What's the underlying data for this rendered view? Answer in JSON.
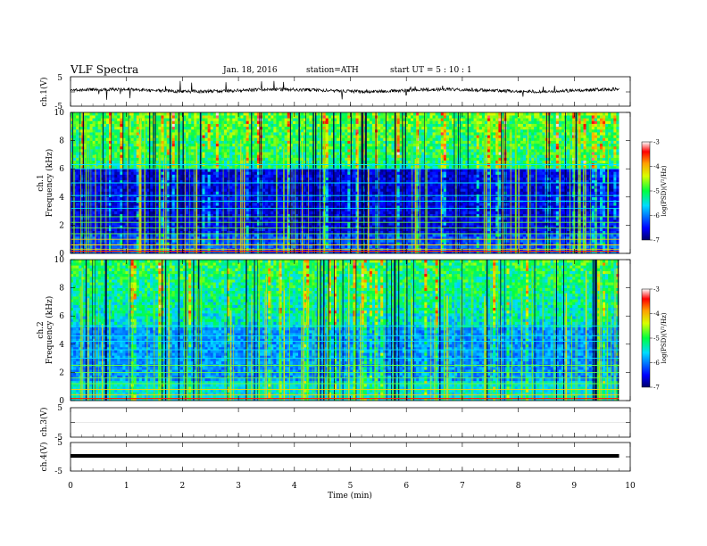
{
  "header": {
    "title": "VLF  Spectra",
    "date": "Jan. 18, 2016",
    "station": "station=ATH",
    "start": "start  UT  =   5  : 10 : 1"
  },
  "chart_data": [
    {
      "type": "line",
      "panel": "ch1-waveform",
      "ylabel": "ch.1(V)",
      "ylim": [
        -5,
        5
      ],
      "yticks": [
        "5",
        "-5"
      ],
      "x_range_min": [
        0,
        9.8
      ],
      "series": [
        {
          "values": "noisy trace centered slightly above 0 V with frequent sferic spikes"
        }
      ]
    },
    {
      "type": "heatmap",
      "panel": "ch1-spectrogram",
      "ylabel": "ch.1\nFrequency  (kHz)",
      "ylabel_lines": [
        "ch.1",
        "Frequency  (kHz)"
      ],
      "ylim": [
        0,
        10
      ],
      "yticks": [
        "0",
        "2",
        "4",
        "6",
        "8",
        "10"
      ],
      "x_range_min": [
        0,
        9.8
      ],
      "colorbar": {
        "label": "log(PSD)(V²/Hz)",
        "ticks": [
          "-3",
          "-4",
          "-5",
          "-6",
          "-7"
        ],
        "range": [
          -7,
          -3
        ]
      },
      "features": {
        "band_edge_khz": 6,
        "high_band_log_psd": -5,
        "low_band_log_psd": -6.6,
        "transmitter_lines_khz": [
          0.3,
          0.6,
          1.0,
          1.4,
          1.8,
          2.2,
          2.6,
          3.2,
          3.7,
          4.1,
          5.0,
          6.0,
          6.3
        ]
      }
    },
    {
      "type": "heatmap",
      "panel": "ch2-spectrogram",
      "ylabel": "ch.2\nFrequency  (kHz)",
      "ylabel_lines": [
        "ch.2",
        "Frequency  (kHz)"
      ],
      "ylim": [
        0,
        10
      ],
      "yticks": [
        "0",
        "2",
        "4",
        "6",
        "8",
        "10"
      ],
      "x_range_min": [
        0,
        9.8
      ],
      "colorbar": {
        "label": "log(PSD)(V²/Hz)",
        "ticks": [
          "-3",
          "-4",
          "-5",
          "-6",
          "-7"
        ],
        "range": [
          -7,
          -3
        ]
      },
      "features": {
        "band_edge_khz": 5.3,
        "high_band_log_psd": -5.2,
        "low_band_log_psd": -5.9,
        "transmitter_lines_khz": [
          0.4,
          0.8,
          1.2,
          1.6,
          2.0,
          2.5,
          3.0,
          3.6,
          4.2,
          4.6,
          5.3
        ]
      }
    },
    {
      "type": "line",
      "panel": "ch3-waveform",
      "ylabel": "ch.3(V)",
      "ylim": [
        -5,
        5
      ],
      "yticks": [
        "5",
        "-5"
      ],
      "series": [
        {
          "values": "flat, no signal"
        }
      ]
    },
    {
      "type": "line",
      "panel": "ch4-waveform",
      "ylabel": "ch.4(V)",
      "ylim": [
        -5,
        5
      ],
      "yticks": [
        "5",
        "-5"
      ],
      "x_range_min": [
        0,
        9.8
      ],
      "series": [
        {
          "values": "constant thick trace near 0 V"
        }
      ]
    }
  ],
  "xaxis": {
    "label": "Time  (min)",
    "ticks": [
      "0",
      "1",
      "2",
      "3",
      "4",
      "5",
      "6",
      "7",
      "8",
      "9",
      "10"
    ],
    "range": [
      0,
      10
    ]
  }
}
